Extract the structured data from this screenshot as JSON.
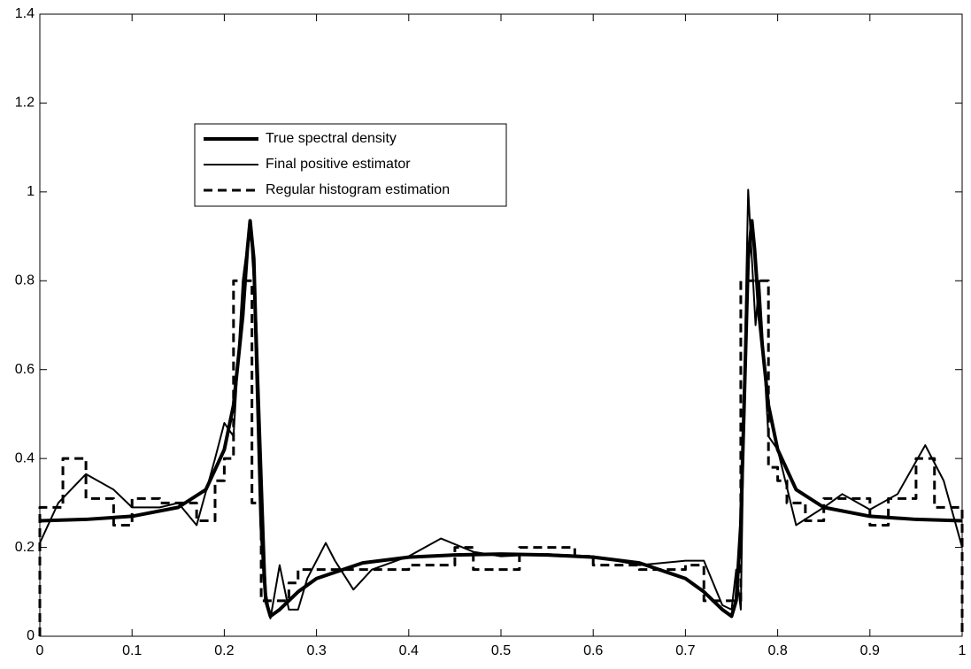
{
  "chart_data": {
    "type": "line",
    "xlim": [
      0,
      1
    ],
    "xticks": [
      0,
      0.1,
      0.2,
      0.3,
      0.4,
      0.5,
      0.6,
      0.7,
      0.8,
      0.9,
      1
    ],
    "ylim": [
      0,
      1.4
    ],
    "yticks": [
      0,
      0.2,
      0.4,
      0.6,
      0.8,
      1,
      1.2,
      1.4
    ],
    "grid": false,
    "legend": "upper center",
    "series": [
      {
        "name": "True spectral density",
        "color": "#000000",
        "line_width": 4,
        "dashed": false,
        "x": [
          0,
          0.05,
          0.1,
          0.15,
          0.18,
          0.2,
          0.21,
          0.22,
          0.225,
          0.228,
          0.232,
          0.236,
          0.24,
          0.245,
          0.25,
          0.26,
          0.28,
          0.3,
          0.35,
          0.4,
          0.45,
          0.5,
          0.55,
          0.6,
          0.65,
          0.7,
          0.72,
          0.74,
          0.75,
          0.755,
          0.76,
          0.764,
          0.768,
          0.772,
          0.775,
          0.78,
          0.79,
          0.8,
          0.82,
          0.85,
          0.9,
          0.95,
          1
        ],
        "values": [
          0.26,
          0.263,
          0.27,
          0.29,
          0.33,
          0.42,
          0.52,
          0.72,
          0.87,
          0.935,
          0.85,
          0.55,
          0.25,
          0.08,
          0.045,
          0.06,
          0.1,
          0.13,
          0.165,
          0.178,
          0.183,
          0.185,
          0.183,
          0.178,
          0.165,
          0.13,
          0.1,
          0.06,
          0.045,
          0.08,
          0.25,
          0.55,
          0.85,
          0.935,
          0.87,
          0.72,
          0.52,
          0.42,
          0.33,
          0.29,
          0.27,
          0.263,
          0.26
        ]
      },
      {
        "name": "Final positive estimator",
        "color": "#000000",
        "line_width": 2,
        "dashed": false,
        "x": [
          0,
          0.02,
          0.05,
          0.08,
          0.1,
          0.13,
          0.15,
          0.17,
          0.19,
          0.2,
          0.21,
          0.22,
          0.228,
          0.235,
          0.245,
          0.25,
          0.255,
          0.26,
          0.27,
          0.28,
          0.29,
          0.31,
          0.32,
          0.34,
          0.36,
          0.4,
          0.435,
          0.47,
          0.5,
          0.55,
          0.6,
          0.65,
          0.7,
          0.72,
          0.73,
          0.74,
          0.75,
          0.755,
          0.76,
          0.765,
          0.768,
          0.772,
          0.776,
          0.78,
          0.79,
          0.8,
          0.82,
          0.85,
          0.87,
          0.9,
          0.93,
          0.96,
          0.98,
          1
        ],
        "values": [
          0.21,
          0.3,
          0.365,
          0.33,
          0.29,
          0.29,
          0.3,
          0.25,
          0.4,
          0.48,
          0.45,
          0.8,
          0.93,
          0.7,
          0.1,
          0.04,
          0.1,
          0.16,
          0.06,
          0.06,
          0.13,
          0.21,
          0.17,
          0.105,
          0.15,
          0.18,
          0.22,
          0.19,
          0.18,
          0.185,
          0.18,
          0.16,
          0.17,
          0.17,
          0.12,
          0.07,
          0.06,
          0.15,
          0.06,
          0.7,
          1.005,
          0.85,
          0.7,
          0.8,
          0.45,
          0.42,
          0.25,
          0.29,
          0.32,
          0.285,
          0.32,
          0.43,
          0.35,
          0.2
        ]
      },
      {
        "name": "Regular histogram estimation",
        "color": "#000000",
        "line_width": 3,
        "dashed": true,
        "x": [
          0,
          0,
          0.025,
          0.025,
          0.05,
          0.05,
          0.08,
          0.08,
          0.1,
          0.1,
          0.13,
          0.13,
          0.17,
          0.17,
          0.19,
          0.19,
          0.2,
          0.2,
          0.21,
          0.21,
          0.23,
          0.23,
          0.24,
          0.24,
          0.27,
          0.27,
          0.28,
          0.28,
          0.33,
          0.33,
          0.4,
          0.4,
          0.45,
          0.45,
          0.47,
          0.47,
          0.52,
          0.52,
          0.58,
          0.58,
          0.6,
          0.6,
          0.65,
          0.65,
          0.7,
          0.7,
          0.72,
          0.72,
          0.76,
          0.76,
          0.79,
          0.79,
          0.8,
          0.8,
          0.81,
          0.81,
          0.83,
          0.83,
          0.85,
          0.85,
          0.9,
          0.9,
          0.92,
          0.92,
          0.95,
          0.95,
          0.97,
          0.97,
          1,
          1
        ],
        "values": [
          0,
          0.29,
          0.29,
          0.4,
          0.4,
          0.31,
          0.31,
          0.25,
          0.25,
          0.31,
          0.31,
          0.3,
          0.3,
          0.26,
          0.26,
          0.35,
          0.35,
          0.4,
          0.4,
          0.8,
          0.8,
          0.3,
          0.3,
          0.08,
          0.08,
          0.12,
          0.12,
          0.15,
          0.15,
          0.15,
          0.15,
          0.16,
          0.16,
          0.2,
          0.2,
          0.15,
          0.15,
          0.2,
          0.2,
          0.18,
          0.18,
          0.16,
          0.16,
          0.15,
          0.15,
          0.16,
          0.16,
          0.08,
          0.08,
          0.8,
          0.8,
          0.38,
          0.38,
          0.35,
          0.35,
          0.3,
          0.3,
          0.26,
          0.26,
          0.31,
          0.31,
          0.25,
          0.25,
          0.31,
          0.31,
          0.4,
          0.4,
          0.29,
          0.29,
          0
        ]
      }
    ]
  }
}
